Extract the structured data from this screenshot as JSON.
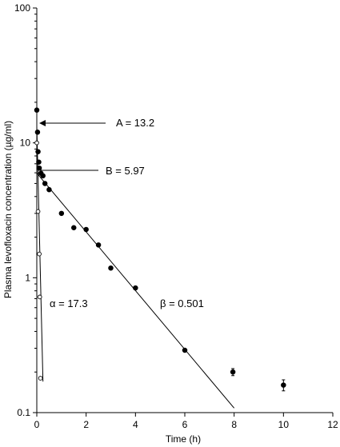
{
  "chart_data": {
    "type": "scatter",
    "xlabel": "Time (h)",
    "ylabel": "Plasma levofloxacin concentration  (µg/ml)",
    "xlim": [
      0,
      12
    ],
    "ylim": [
      0.1,
      100
    ],
    "yscale": "log",
    "grid": false,
    "x_ticks": [
      "0",
      "2",
      "4",
      "6",
      "8",
      "10",
      "12"
    ],
    "y_ticks": [
      "0.1",
      "1",
      "10",
      "100"
    ],
    "series": [
      {
        "marker": "filled-circle",
        "x": [
          0.0,
          0.03,
          0.05,
          0.08,
          0.1,
          0.17,
          0.25,
          0.33,
          0.5,
          1.0,
          1.5,
          2.0,
          2.5,
          3.0,
          4.0,
          6.0,
          7.95,
          10.0
        ],
        "y": [
          17.5,
          12.0,
          8.6,
          7.2,
          6.5,
          5.95,
          5.7,
          5.0,
          4.5,
          3.0,
          2.35,
          2.28,
          1.75,
          1.18,
          0.84,
          0.29,
          0.2,
          0.16
        ],
        "yerr": [
          0,
          0,
          0,
          0,
          0,
          0,
          0,
          0,
          0,
          0,
          0,
          0,
          0,
          0,
          0,
          0,
          0.012,
          0.015
        ]
      },
      {
        "marker": "open-circle",
        "x": [
          0.0,
          0.05,
          0.1,
          0.12,
          0.15
        ],
        "y": [
          10.0,
          3.1,
          1.5,
          0.72,
          0.18
        ]
      }
    ],
    "fit_lines": [
      {
        "x": [
          0.0,
          8.0
        ],
        "y": [
          5.97,
          0.108
        ]
      },
      {
        "x": [
          0.0,
          0.25
        ],
        "y": [
          13.2,
          0.17
        ]
      }
    ],
    "annotations": {
      "A": "A = 13.2",
      "B": "B = 5.97",
      "alpha": "α = 17.3",
      "beta": "β = 0.501"
    }
  }
}
